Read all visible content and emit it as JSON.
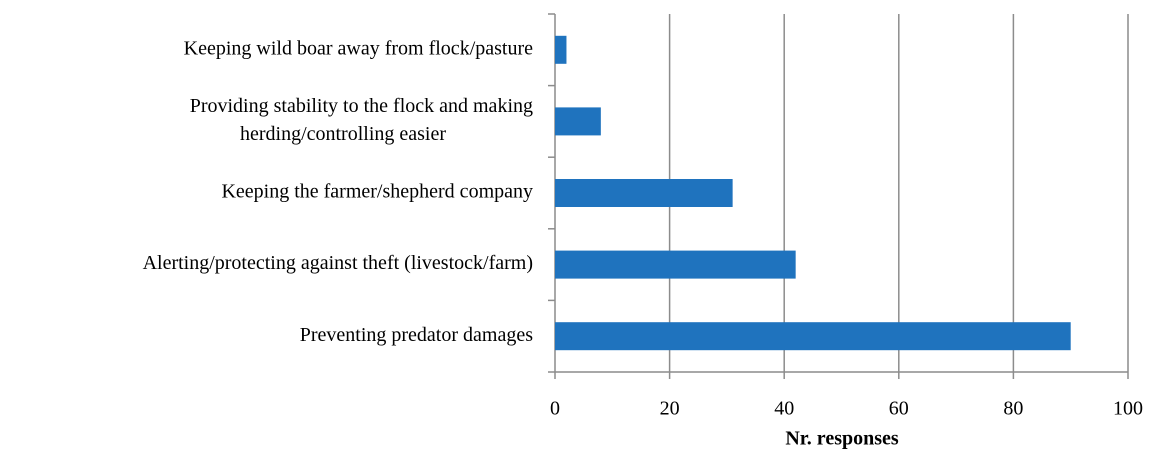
{
  "chart_data": {
    "type": "barh",
    "categories": [
      "Keeping wild boar away from flock/pasture",
      [
        "Providing stability to the flock and making",
        "herding/controlling easier"
      ],
      "Keeping the farmer/shepherd company",
      "Alerting/protecting against theft (livestock/farm)",
      "Preventing predator damages"
    ],
    "values": [
      2,
      8,
      31,
      42,
      90
    ],
    "color": "#1f73be",
    "xlim": [
      0,
      100
    ],
    "xticks": [
      0,
      20,
      40,
      60,
      80,
      100
    ],
    "xlabel": "Nr. responses",
    "grid": true
  }
}
